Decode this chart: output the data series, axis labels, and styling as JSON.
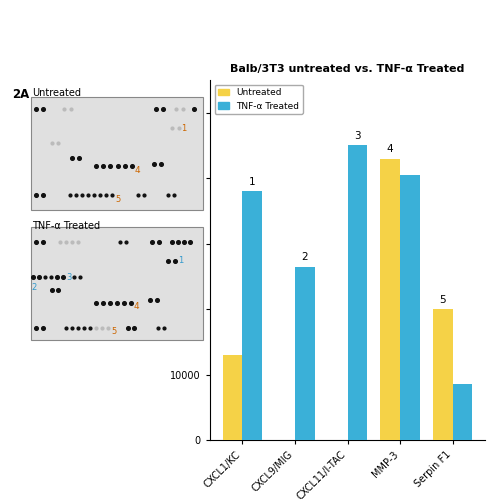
{
  "title": "Balb/3T3 untreated vs. TNF-α Treated",
  "categories": [
    "CXCL1/KC",
    "CXCL9/MIG",
    "CXCL11/I-TAC",
    "MMP-3",
    "Serpin F1"
  ],
  "untreated": [
    13000,
    0,
    0,
    43000,
    20000
  ],
  "tnf_treated": [
    38000,
    26500,
    45000,
    40500,
    8500
  ],
  "untreated_color": "#f5d247",
  "tnf_color": "#3ab0d8",
  "ylim": [
    0,
    55000
  ],
  "yticks": [
    0,
    10000,
    20000,
    30000,
    40000,
    50000
  ],
  "legend_untreated": "Untreated",
  "legend_tnf": "TNF-α Treated",
  "left_panel_label": "2A",
  "untreated_blot_label": "Untreated",
  "tnf_blot_label": "TNF-α Treated",
  "background_color": "#ffffff",
  "panel_bg": "#e0e0e0",
  "dot_color": "#111111",
  "dot_faint": "#bbbbbb",
  "annot_color_orange": "#cc6600",
  "annot_color_blue": "#3399cc"
}
